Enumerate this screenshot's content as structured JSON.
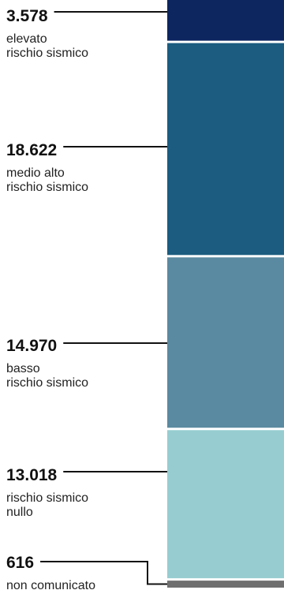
{
  "chart_data": {
    "type": "bar",
    "subtype": "stacked-single-column",
    "categories": [
      {
        "value_label": "3.578",
        "label_lines": [
          "elevato",
          "rischio sismico"
        ],
        "color": "#0d2660"
      },
      {
        "value_label": "18.622",
        "label_lines": [
          "medio alto",
          "rischio sismico"
        ],
        "color": "#1b5c80"
      },
      {
        "value_label": "14.970",
        "label_lines": [
          "basso",
          "rischio sismico"
        ],
        "color": "#5a8aa1"
      },
      {
        "value_label": "13.018",
        "label_lines": [
          "rischio sismico",
          "nullo"
        ],
        "color": "#97cdd1"
      },
      {
        "value_label": "616",
        "label_lines": [
          "non comunicato"
        ],
        "color": "#6f6f6f"
      }
    ],
    "values": [
      3578,
      18622,
      14970,
      13018,
      616
    ],
    "leader_color": "#111111",
    "background": "#ffffff"
  }
}
